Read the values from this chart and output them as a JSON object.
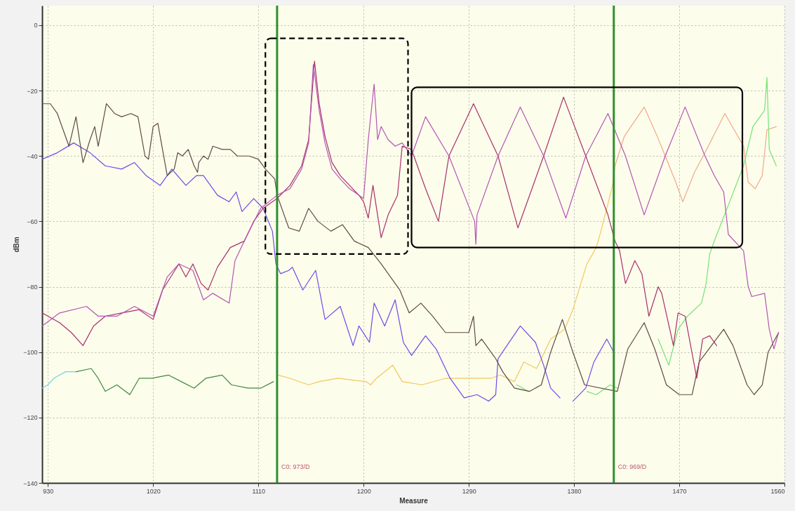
{
  "chart_data": {
    "type": "line",
    "xlabel": "Measure",
    "ylabel": "dBm",
    "xlim": [
      925,
      1560
    ],
    "ylim": [
      -140,
      6
    ],
    "xticks": [
      930,
      1020,
      1110,
      1200,
      1290,
      1380,
      1470,
      1560
    ],
    "yticks": [
      -140,
      -120,
      -100,
      -80,
      -60,
      -40,
      -20,
      0
    ],
    "grid": true,
    "marker": "none",
    "line_style": "solid",
    "series": [
      {
        "color": "#6ad4e4",
        "x": [
          925,
          930,
          935,
          940,
          945,
          950,
          954
        ],
        "values": [
          -111,
          -110,
          -108,
          -107,
          -106,
          -106,
          -106
        ]
      },
      {
        "color": "#3c8a3c",
        "x": [
          954,
          967,
          973,
          979,
          989,
          1000,
          1008,
          1019,
          1033,
          1044,
          1055,
          1065,
          1079,
          1087,
          1101,
          1112,
          1123
        ],
        "values": [
          -106,
          -105,
          -108,
          -112,
          -110,
          -113,
          -108,
          -108,
          -107,
          -109,
          -111,
          -108,
          -107,
          -110,
          -111,
          -111,
          -109
        ]
      },
      {
        "color": "#f2c85a",
        "x": [
          1127,
          1137,
          1153,
          1162,
          1178,
          1202,
          1206,
          1211,
          1225,
          1233,
          1250,
          1270,
          1290,
          1309,
          1317,
          1329,
          1337,
          1348,
          1360,
          1372,
          1379,
          1391,
          1399,
          1403,
          1413
        ],
        "values": [
          -107,
          -108,
          -110,
          -109,
          -108,
          -109,
          -110,
          -108,
          -104,
          -109,
          -110,
          -108,
          -108,
          -108,
          -107,
          -109,
          -103,
          -105,
          -96,
          -93,
          -87,
          -73,
          -68,
          -63,
          -49
        ]
      },
      {
        "color": "#72e472",
        "x": [
          1331,
          1341,
          1342,
          1391,
          1399,
          1411,
          1417,
          1418,
          1452,
          1461,
          1469,
          1477,
          1489,
          1493,
          1496,
          1500,
          1512,
          1525,
          1533,
          1543,
          1545,
          1547,
          1553
        ],
        "values": [
          -110,
          -112,
          null,
          -112,
          -113,
          -110,
          -111,
          null,
          -96,
          -104,
          -93,
          -89,
          -85,
          -79,
          -70,
          -66,
          -55,
          -43,
          -31,
          -26,
          -16,
          -38,
          -43
        ]
      },
      {
        "color": "#f2a888",
        "x": [
          1413,
          1415,
          1423,
          1440,
          1450,
          1458,
          1467,
          1473,
          1483,
          1492,
          1509,
          1525,
          1529,
          1535,
          1541,
          1545,
          1553
        ],
        "values": [
          -49,
          -43,
          -34,
          -25,
          -33,
          -40,
          -48,
          -54,
          -45,
          -39,
          -27,
          -37,
          -48,
          -50,
          -46,
          -32,
          -31
        ]
      },
      {
        "color": "#6b4ce6",
        "x": [
          925,
          938,
          952,
          966,
          979,
          993,
          1004,
          1014,
          1026,
          1036,
          1048,
          1057,
          1063,
          1075,
          1085,
          1091,
          1096,
          1106,
          1114,
          1122,
          1125,
          1129,
          1136,
          1139,
          1148,
          1159,
          1167,
          1180,
          1191,
          1196,
          1205,
          1209,
          1218,
          1227,
          1234,
          1241,
          1253,
          1262,
          1274,
          1286,
          1297,
          1307,
          1313,
          1315,
          1334,
          1347,
          1354,
          1360,
          1368,
          1373,
          1379,
          1390,
          1397,
          1408,
          1414
        ],
        "values": [
          -41,
          -39,
          -36,
          -39,
          -43,
          -44,
          -42,
          -46,
          -49,
          -44,
          -49,
          -46,
          -46,
          -52,
          -54,
          -51,
          -57,
          -53,
          -56,
          -63,
          -73,
          -76,
          -75,
          -74,
          -81,
          -75,
          -90,
          -86,
          -98,
          -92,
          -97,
          -85,
          -92,
          -84,
          -97,
          -101,
          -95,
          -99,
          -108,
          -114,
          -113,
          -115,
          -113,
          -102,
          -92,
          -97,
          -104,
          -111,
          -114,
          null,
          -115,
          -111,
          -103,
          -96,
          -100
        ]
      },
      {
        "color": "#5e4c44",
        "x": [
          925,
          932,
          938,
          948,
          954,
          960,
          966,
          970,
          973,
          980,
          987,
          993,
          1001,
          1007,
          1013,
          1016,
          1020,
          1024,
          1032,
          1038,
          1041,
          1045,
          1050,
          1055,
          1058,
          1059,
          1063,
          1067,
          1071,
          1079,
          1086,
          1092,
          1102,
          1110,
          1116,
          1124,
          1126,
          1136,
          1145,
          1153,
          1161,
          1172,
          1182,
          1192,
          1204,
          1215,
          1227,
          1231,
          1239,
          1249,
          1259,
          1270,
          1280,
          1290,
          1294,
          1296,
          1301,
          1313,
          1319,
          1329,
          1342,
          1352,
          1360,
          1370,
          1379,
          1389,
          1417,
          1426,
          1440,
          1449,
          1459,
          1470,
          1481,
          1487,
          1508,
          1516,
          1528,
          1534,
          1541,
          1546,
          1555
        ],
        "values": [
          -24,
          -24,
          -27,
          -37,
          -28,
          -42,
          -35,
          -31,
          -37,
          -24,
          -27,
          -28,
          -27,
          -28,
          -40,
          -41,
          -31,
          -30,
          -46,
          -44,
          -39,
          -40,
          -38,
          -43,
          -45,
          -42,
          -40,
          -41,
          -37,
          -38,
          -38,
          -40,
          -40,
          -41,
          -44,
          -47,
          -52,
          -62,
          -63,
          -56,
          -60,
          -63,
          -61,
          -66,
          -68,
          -73,
          -79,
          -81,
          -88,
          -85,
          -89,
          -94,
          -94,
          -94,
          -89,
          -98,
          -96,
          -102,
          -106,
          -111,
          -112,
          -110,
          -100,
          -90,
          -100,
          -110,
          -112,
          -99,
          -91,
          -99,
          -110,
          -113,
          -113,
          -103,
          -93,
          -98,
          -110,
          -113,
          -110,
          -100,
          -94
        ]
      },
      {
        "color": "#a8306a",
        "x": [
          925,
          940,
          950,
          960,
          969,
          979,
          993,
          1008,
          1020,
          1028,
          1042,
          1048,
          1054,
          1061,
          1067,
          1075,
          1086,
          1098,
          1106,
          1114,
          1126,
          1137,
          1147,
          1153,
          1158,
          1162,
          1167,
          1173,
          1180,
          1188,
          1196,
          1200,
          1204,
          1208,
          1215,
          1221,
          1229,
          1233,
          1241,
          1253,
          1264,
          1273,
          1294,
          1315,
          1332,
          1354,
          1371,
          1390,
          1409,
          1415,
          1419,
          1424,
          1432,
          1438,
          1444,
          1452,
          1455,
          1465,
          1469,
          1475,
          1485,
          1490,
          1496,
          1502
        ],
        "values": [
          -88,
          -91,
          -94,
          -98,
          -92,
          -89,
          -88,
          -87,
          -90,
          -81,
          -73,
          -77,
          -73,
          -79,
          -81,
          -74,
          -68,
          -66,
          -60,
          -56,
          -53,
          -49,
          -43,
          -35,
          -11,
          -24,
          -34,
          -42,
          -46,
          -49,
          -52,
          -54,
          -59,
          -49,
          -65,
          -58,
          -52,
          -37,
          -38,
          -50,
          -60,
          -40,
          -24,
          -40,
          -62,
          -40,
          -22,
          -40,
          -58,
          -66,
          -69,
          -79,
          -72,
          -76,
          -89,
          -80,
          -82,
          -98,
          -88,
          -89,
          -108,
          -96,
          -95,
          -98
        ]
      },
      {
        "color": "#b455b4",
        "x": [
          925,
          940,
          963,
          973,
          989,
          1004,
          1020,
          1032,
          1042,
          1054,
          1063,
          1071,
          1085,
          1090,
          1102,
          1112,
          1126,
          1137,
          1147,
          1153,
          1157,
          1162,
          1167,
          1173,
          1180,
          1188,
          1196,
          1200,
          1204,
          1209,
          1212,
          1215,
          1221,
          1227,
          1233,
          1241,
          1253,
          1273,
          1295,
          1296,
          1297,
          1315,
          1334,
          1354,
          1373,
          1390,
          1409,
          1424,
          1440,
          1458,
          1475,
          1492,
          1500,
          1508,
          1512,
          1525,
          1529,
          1532,
          1543,
          1547,
          1551,
          1555
        ],
        "values": [
          -92,
          -88,
          -86,
          -89,
          -89,
          -86,
          -89,
          -77,
          -73,
          -75,
          -84,
          -82,
          -85,
          -72,
          -63,
          -56,
          -52,
          -50,
          -44,
          -36,
          -12,
          -26,
          -36,
          -44,
          -47,
          -50,
          -52,
          -53,
          -35,
          -18,
          -35,
          -31,
          -35,
          -37,
          -36,
          -40,
          -28,
          -40,
          -60,
          -67,
          -58,
          -40,
          -25,
          -40,
          -59,
          -40,
          -27,
          -40,
          -58,
          -40,
          -25,
          -40,
          -46,
          -51,
          -64,
          -69,
          -80,
          -83,
          -82,
          -93,
          -99,
          -94
        ]
      }
    ],
    "ref_lines": [
      {
        "axis": "x",
        "value": 1126,
        "color": "#2f8f2f"
      },
      {
        "axis": "x",
        "value": 1414,
        "color": "#2f8f2f"
      }
    ],
    "annotations": [
      {
        "text": "C0: 973/D",
        "x": 1126,
        "y": -135
      },
      {
        "text": "C0: 969/D",
        "x": 1414,
        "y": -135
      }
    ]
  }
}
